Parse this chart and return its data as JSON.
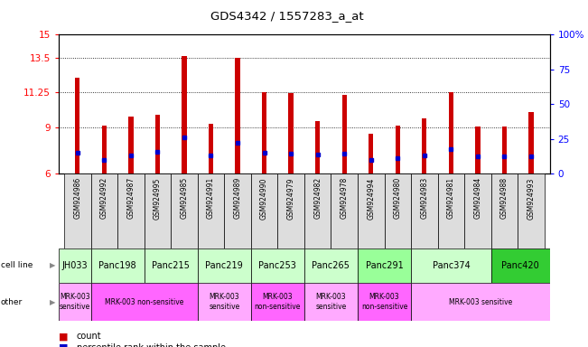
{
  "title": "GDS4342 / 1557283_a_at",
  "samples": [
    "GSM924986",
    "GSM924992",
    "GSM924987",
    "GSM924995",
    "GSM924985",
    "GSM924991",
    "GSM924989",
    "GSM924990",
    "GSM924979",
    "GSM924982",
    "GSM924978",
    "GSM924994",
    "GSM924980",
    "GSM924983",
    "GSM924981",
    "GSM924984",
    "GSM924988",
    "GSM924993"
  ],
  "bar_heights": [
    12.2,
    9.1,
    9.7,
    9.8,
    13.6,
    9.2,
    13.5,
    11.3,
    11.2,
    9.4,
    11.1,
    8.6,
    9.1,
    9.6,
    11.25,
    9.05,
    9.05,
    10.0
  ],
  "blue_positions": [
    7.35,
    6.9,
    7.2,
    7.4,
    8.35,
    7.15,
    8.0,
    7.35,
    7.3,
    7.25,
    7.3,
    6.9,
    7.0,
    7.15,
    7.6,
    7.1,
    7.1,
    7.1
  ],
  "ymin": 6,
  "ymax": 15,
  "yticks_left": [
    6,
    9,
    11.25,
    13.5,
    15
  ],
  "yticks_right_vals": [
    0,
    25,
    50,
    75,
    100
  ],
  "yticks_right_labels": [
    "0",
    "25",
    "50",
    "75",
    "100%"
  ],
  "bar_color": "#cc0000",
  "blue_color": "#0000cc",
  "cell_lines": [
    {
      "name": "JH033",
      "start": 0,
      "end": 1,
      "color": "#ccffcc"
    },
    {
      "name": "Panc198",
      "start": 1,
      "end": 3,
      "color": "#ccffcc"
    },
    {
      "name": "Panc215",
      "start": 3,
      "end": 5,
      "color": "#ccffcc"
    },
    {
      "name": "Panc219",
      "start": 5,
      "end": 7,
      "color": "#ccffcc"
    },
    {
      "name": "Panc253",
      "start": 7,
      "end": 9,
      "color": "#ccffcc"
    },
    {
      "name": "Panc265",
      "start": 9,
      "end": 11,
      "color": "#ccffcc"
    },
    {
      "name": "Panc291",
      "start": 11,
      "end": 13,
      "color": "#99ff99"
    },
    {
      "name": "Panc374",
      "start": 13,
      "end": 16,
      "color": "#ccffcc"
    },
    {
      "name": "Panc420",
      "start": 16,
      "end": 18,
      "color": "#33cc33"
    }
  ],
  "other_rows": [
    {
      "label": "MRK-003\nsensitive",
      "start": 0,
      "end": 1,
      "color": "#ffaaff"
    },
    {
      "label": "MRK-003 non-sensitive",
      "start": 1,
      "end": 5,
      "color": "#ff66ff"
    },
    {
      "label": "MRK-003\nsensitive",
      "start": 5,
      "end": 7,
      "color": "#ffaaff"
    },
    {
      "label": "MRK-003\nnon-sensitive",
      "start": 7,
      "end": 9,
      "color": "#ff66ff"
    },
    {
      "label": "MRK-003\nsensitive",
      "start": 9,
      "end": 11,
      "color": "#ffaaff"
    },
    {
      "label": "MRK-003\nnon-sensitive",
      "start": 11,
      "end": 13,
      "color": "#ff66ff"
    },
    {
      "label": "MRK-003 sensitive",
      "start": 13,
      "end": 18,
      "color": "#ffaaff"
    }
  ],
  "figsize": [
    6.51,
    3.84
  ],
  "dpi": 100
}
